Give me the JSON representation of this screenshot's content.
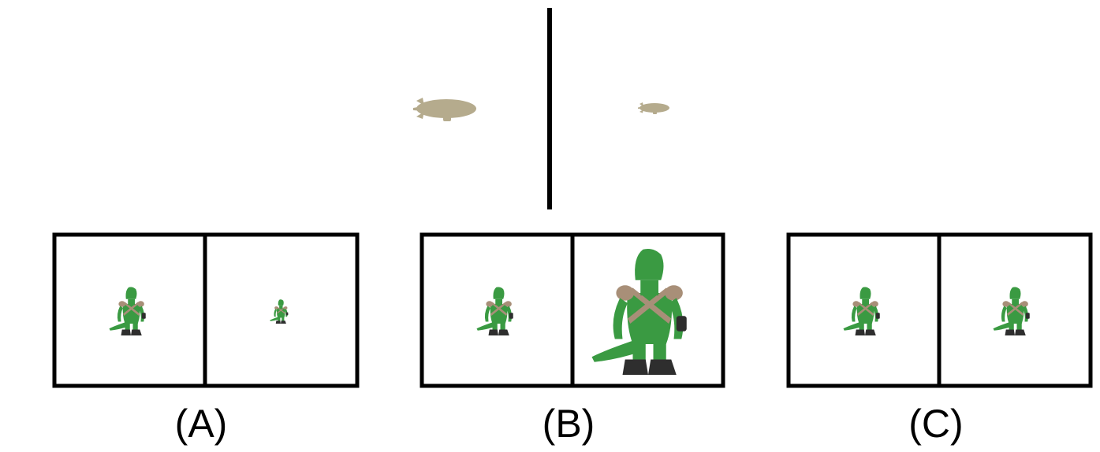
{
  "reference": {
    "left_object": "blimp",
    "right_object": "blimp",
    "right_scale": 0.5
  },
  "options": [
    {
      "label": "(A)",
      "left_object": "lizard-figure",
      "right_object": "lizard-figure",
      "right_scale": 0.5
    },
    {
      "label": "(B)",
      "left_object": "lizard-figure",
      "right_object": "lizard-figure",
      "right_scale": 2.6
    },
    {
      "label": "(C)",
      "left_object": "lizard-figure",
      "right_object": "lizard-figure",
      "right_scale": 1.0
    }
  ],
  "colors": {
    "frame": "#000000",
    "blimp": "#b5ab8d",
    "lizard_skin": "#3a9a42",
    "lizard_strap": "#a88f78",
    "lizard_boot": "#2e2e2e",
    "background": "#ffffff"
  }
}
